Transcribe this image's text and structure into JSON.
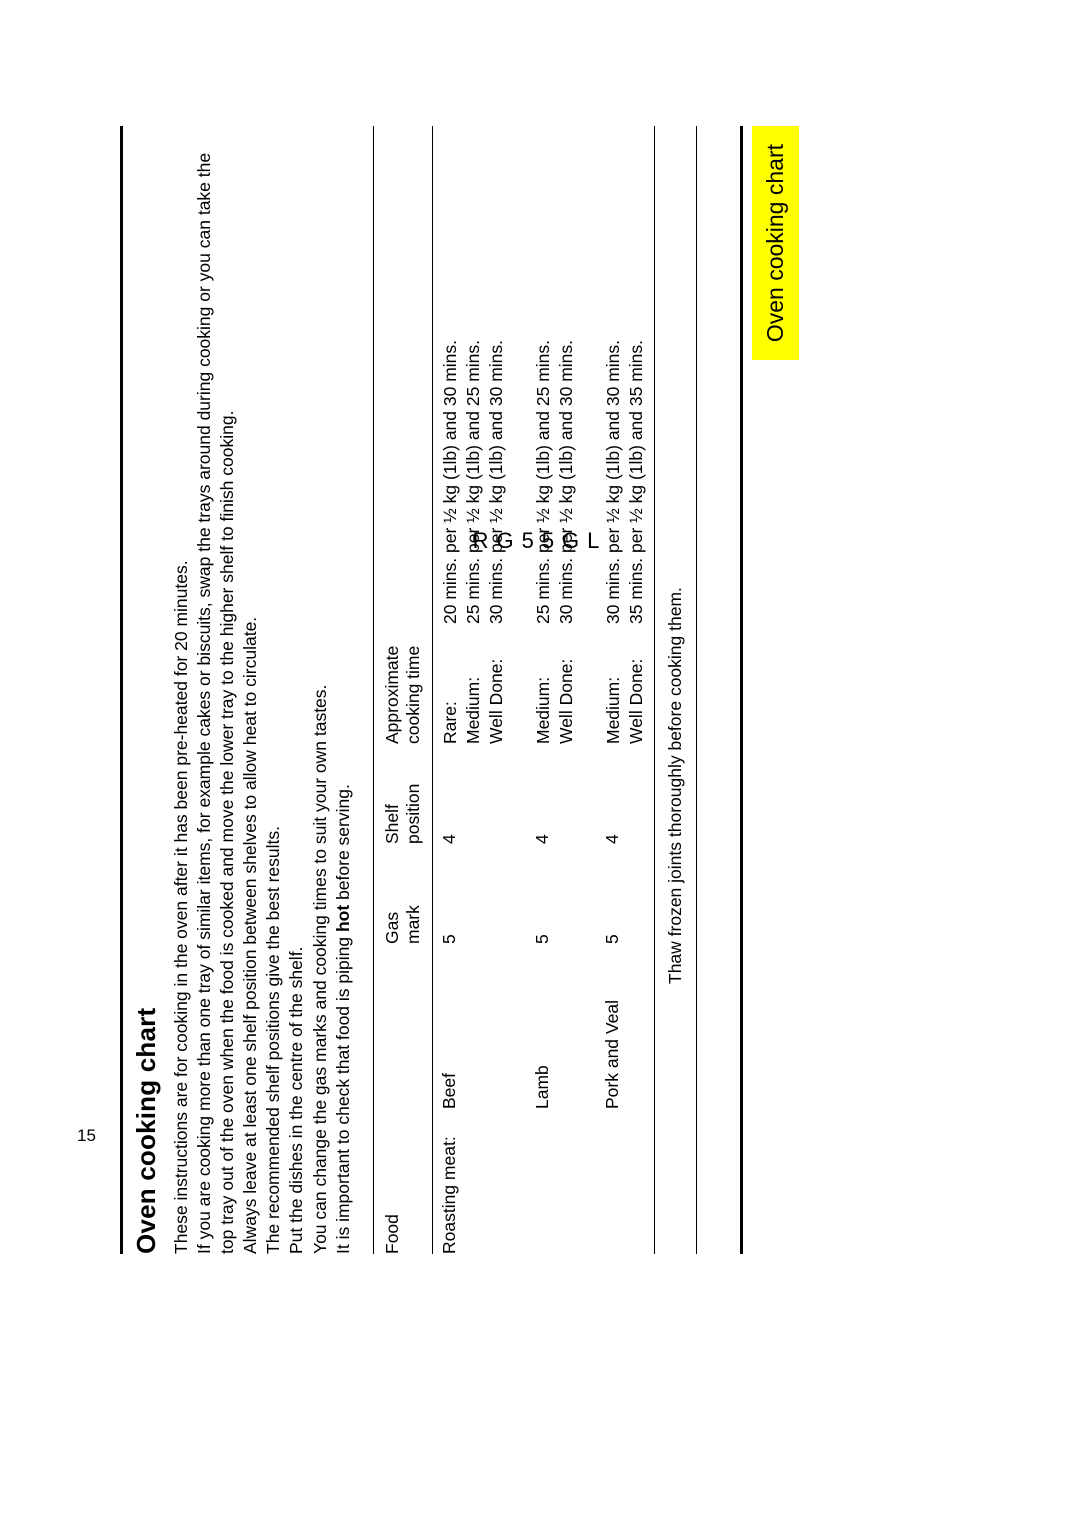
{
  "model_code": "RG55GL",
  "page_number": "15",
  "heading": "Oven cooking chart",
  "intro": {
    "p1": "These instructions are for cooking in the oven after it has been pre-heated for 20 minutes.",
    "p2": "If you are cooking more than one tray of similar items, for example cakes or biscuits, swap the trays around during cooking or you can take the top tray out of the oven when the food is cooked and move the lower tray to the higher shelf to finish cooking.",
    "p3": "Always leave at least one shelf position between shelves to allow heat to circulate.",
    "p4": "The recommended shelf positions give the best results.",
    "p5": "Put the dishes in the centre of the shelf.",
    "p6": "You can change the gas marks and cooking times to suit your own tastes.",
    "p7a": "It is important to check that food is piping ",
    "p7hot": "hot",
    "p7b": " before serving."
  },
  "columns": {
    "food": "Food",
    "blank": "",
    "gas1": "Gas",
    "gas2": "mark",
    "shelf1": "Shelf",
    "shelf2": "position",
    "approx1": "Approximate",
    "approx2": "cooking time",
    "time_blank": ""
  },
  "rows": [
    {
      "food": "Roasting meat:",
      "item": "Beef",
      "gas": "5",
      "shelf": "4",
      "dones": [
        "Rare:",
        "Medium:",
        "Well Done:"
      ],
      "times": [
        "20 mins. per ½ kg (1lb) and 30 mins.",
        "25 mins. per ½ kg (1lb) and 25 mins.",
        "30 mins. per ½ kg (1lb) and 30 mins."
      ]
    },
    {
      "food": "",
      "item": "Lamb",
      "gas": "5",
      "shelf": "4",
      "dones": [
        "Medium:",
        "Well Done:"
      ],
      "times": [
        "25 mins. per ½ kg (1lb) and 25 mins.",
        "30 mins. per ½ kg (1lb) and 30 mins."
      ]
    },
    {
      "food": "",
      "item": "Pork and Veal",
      "gas": "5",
      "shelf": "4",
      "dones": [
        "Medium:",
        "Well Done:"
      ],
      "times": [
        "30 mins. per ½ kg (1lb) and 30 mins.",
        "35 mins. per ½ kg (1lb) and 35 mins."
      ]
    }
  ],
  "footnote": "Thaw frozen joints thoroughly before cooking them.",
  "tab_label": "Oven cooking chart",
  "colors": {
    "tab_bg": "#ffff00",
    "text": "#000000",
    "bg": "#ffffff"
  }
}
